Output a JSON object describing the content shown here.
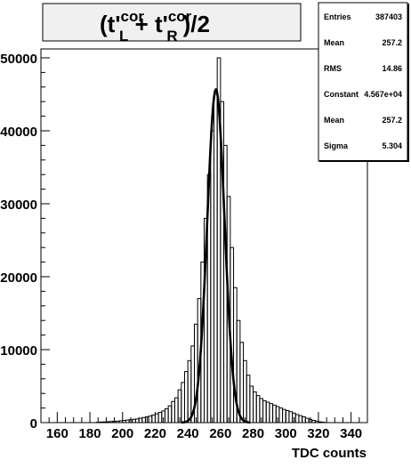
{
  "chart_data": {
    "type": "histogram",
    "title": "(t'_L^cor + t'_R^cor)/2",
    "title_parts": {
      "open": "(t'",
      "sup1": "cor",
      "sub1": "L",
      "plus": " + t'",
      "sup2": "cor",
      "sub2": "R",
      "close": ")/2"
    },
    "xlabel": "TDC counts",
    "ylabel": "",
    "xlim": [
      150,
      350
    ],
    "ylim": [
      0,
      50000
    ],
    "x_ticks": [
      160,
      180,
      200,
      220,
      240,
      260,
      280,
      300,
      320,
      340
    ],
    "y_ticks": [
      0,
      10000,
      20000,
      30000,
      40000,
      50000
    ],
    "y_tick_labels": [
      "0",
      "10000",
      "20000",
      "30000",
      "40000",
      "50000"
    ],
    "bin_width": 2,
    "bins": [
      {
        "x": 150,
        "y": 0
      },
      {
        "x": 152,
        "y": 0
      },
      {
        "x": 154,
        "y": 0
      },
      {
        "x": 156,
        "y": 0
      },
      {
        "x": 158,
        "y": 0
      },
      {
        "x": 160,
        "y": 0
      },
      {
        "x": 162,
        "y": 0
      },
      {
        "x": 164,
        "y": 0
      },
      {
        "x": 166,
        "y": 0
      },
      {
        "x": 168,
        "y": 0
      },
      {
        "x": 170,
        "y": 0
      },
      {
        "x": 172,
        "y": 0
      },
      {
        "x": 174,
        "y": 0
      },
      {
        "x": 176,
        "y": 0
      },
      {
        "x": 178,
        "y": 0
      },
      {
        "x": 180,
        "y": 0
      },
      {
        "x": 182,
        "y": 0
      },
      {
        "x": 184,
        "y": 50
      },
      {
        "x": 186,
        "y": 80
      },
      {
        "x": 188,
        "y": 100
      },
      {
        "x": 190,
        "y": 120
      },
      {
        "x": 192,
        "y": 150
      },
      {
        "x": 194,
        "y": 180
      },
      {
        "x": 196,
        "y": 200
      },
      {
        "x": 198,
        "y": 250
      },
      {
        "x": 200,
        "y": 300
      },
      {
        "x": 202,
        "y": 350
      },
      {
        "x": 204,
        "y": 400
      },
      {
        "x": 206,
        "y": 450
      },
      {
        "x": 208,
        "y": 500
      },
      {
        "x": 210,
        "y": 600
      },
      {
        "x": 212,
        "y": 700
      },
      {
        "x": 214,
        "y": 800
      },
      {
        "x": 216,
        "y": 900
      },
      {
        "x": 218,
        "y": 1050
      },
      {
        "x": 220,
        "y": 1200
      },
      {
        "x": 222,
        "y": 1400
      },
      {
        "x": 224,
        "y": 1600
      },
      {
        "x": 226,
        "y": 1900
      },
      {
        "x": 228,
        "y": 2300
      },
      {
        "x": 230,
        "y": 2900
      },
      {
        "x": 232,
        "y": 3400
      },
      {
        "x": 234,
        "y": 4500
      },
      {
        "x": 236,
        "y": 5500
      },
      {
        "x": 238,
        "y": 7000
      },
      {
        "x": 240,
        "y": 8500
      },
      {
        "x": 242,
        "y": 10500
      },
      {
        "x": 244,
        "y": 13500
      },
      {
        "x": 246,
        "y": 17000
      },
      {
        "x": 248,
        "y": 22000
      },
      {
        "x": 250,
        "y": 28000
      },
      {
        "x": 252,
        "y": 34000
      },
      {
        "x": 254,
        "y": 40000
      },
      {
        "x": 256,
        "y": 45000
      },
      {
        "x": 258,
        "y": 50000
      },
      {
        "x": 260,
        "y": 44000
      },
      {
        "x": 262,
        "y": 38000
      },
      {
        "x": 264,
        "y": 31000
      },
      {
        "x": 266,
        "y": 24000
      },
      {
        "x": 268,
        "y": 18500
      },
      {
        "x": 270,
        "y": 14000
      },
      {
        "x": 272,
        "y": 11000
      },
      {
        "x": 274,
        "y": 8500
      },
      {
        "x": 276,
        "y": 6500
      },
      {
        "x": 278,
        "y": 5000
      },
      {
        "x": 280,
        "y": 4200
      },
      {
        "x": 282,
        "y": 3700
      },
      {
        "x": 284,
        "y": 3300
      },
      {
        "x": 286,
        "y": 3000
      },
      {
        "x": 288,
        "y": 2800
      },
      {
        "x": 290,
        "y": 2600
      },
      {
        "x": 292,
        "y": 2400
      },
      {
        "x": 294,
        "y": 2200
      },
      {
        "x": 296,
        "y": 2000
      },
      {
        "x": 298,
        "y": 1800
      },
      {
        "x": 300,
        "y": 1650
      },
      {
        "x": 302,
        "y": 1500
      },
      {
        "x": 304,
        "y": 1300
      },
      {
        "x": 306,
        "y": 1100
      },
      {
        "x": 308,
        "y": 950
      },
      {
        "x": 310,
        "y": 800
      },
      {
        "x": 312,
        "y": 600
      },
      {
        "x": 314,
        "y": 450
      },
      {
        "x": 316,
        "y": 300
      },
      {
        "x": 318,
        "y": 200
      },
      {
        "x": 320,
        "y": 100
      },
      {
        "x": 322,
        "y": 50
      },
      {
        "x": 324,
        "y": 0
      },
      {
        "x": 326,
        "y": 0
      },
      {
        "x": 328,
        "y": 0
      },
      {
        "x": 330,
        "y": 0
      },
      {
        "x": 332,
        "y": 0
      },
      {
        "x": 334,
        "y": 0
      },
      {
        "x": 336,
        "y": 0
      },
      {
        "x": 338,
        "y": 0
      },
      {
        "x": 340,
        "y": 0
      },
      {
        "x": 342,
        "y": 0
      },
      {
        "x": 344,
        "y": 0
      },
      {
        "x": 346,
        "y": 0
      },
      {
        "x": 348,
        "y": 0
      }
    ],
    "fit": {
      "type": "gaussian",
      "constant": 45670,
      "mean": 257.2,
      "sigma": 5.304
    },
    "stats_box": [
      {
        "label": "Entries",
        "value": "387403"
      },
      {
        "label": "Mean",
        "value": "257.2"
      },
      {
        "label": "RMS",
        "value": "14.86"
      },
      {
        "label": "Constant",
        "value": "4.567e+04"
      },
      {
        "label": "Mean",
        "value": "257.2"
      },
      {
        "label": "Sigma",
        "value": "5.304"
      }
    ],
    "colors": {
      "background": "#ffffff",
      "title_box": "#f0f0f0",
      "line": "#000000"
    }
  }
}
